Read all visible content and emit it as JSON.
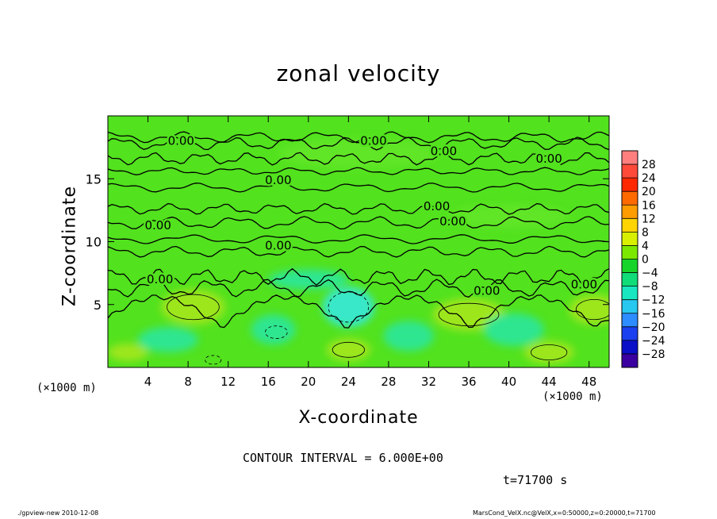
{
  "chart_data": {
    "type": "heatmap",
    "title": "zonal velocity",
    "xlabel": "X-coordinate",
    "ylabel": "Z-coordinate",
    "x_unit_left": "(×1000 m)",
    "x_unit_right": "(×1000 m)",
    "xlim": [
      0,
      50
    ],
    "ylim": [
      0,
      20
    ],
    "x_ticks": [
      "4",
      "8",
      "12",
      "16",
      "20",
      "24",
      "28",
      "32",
      "36",
      "40",
      "44",
      "48"
    ],
    "x_tick_values": [
      4,
      8,
      12,
      16,
      20,
      24,
      28,
      32,
      36,
      40,
      44,
      48
    ],
    "y_ticks": [
      "5",
      "10",
      "15"
    ],
    "y_tick_values": [
      5,
      10,
      15
    ],
    "contour_interval_text": "CONTOUR INTERVAL = 6.000E+00",
    "time_text": "t=71700 s",
    "contour_labels": [
      {
        "text": "0.00",
        "x": 7.3,
        "z": 18.0
      },
      {
        "text": "0.00",
        "x": 26.5,
        "z": 18.0
      },
      {
        "text": "0.00",
        "x": 33.5,
        "z": 17.2
      },
      {
        "text": "0.00",
        "x": 44.0,
        "z": 16.6
      },
      {
        "text": "0.00",
        "x": 17.0,
        "z": 14.9
      },
      {
        "text": "0.00",
        "x": 32.8,
        "z": 12.8
      },
      {
        "text": "0.00",
        "x": 34.4,
        "z": 11.6
      },
      {
        "text": "0.00",
        "x": 5.0,
        "z": 11.3
      },
      {
        "text": "0.00",
        "x": 17.0,
        "z": 9.7
      },
      {
        "text": "0.00",
        "x": 5.2,
        "z": 7.0
      },
      {
        "text": "0.00",
        "x": 37.8,
        "z": 6.1
      },
      {
        "text": "0.00",
        "x": 47.5,
        "z": 6.6
      }
    ],
    "colorbar": {
      "levels": [
        "28",
        "24",
        "20",
        "16",
        "12",
        "8",
        "4",
        "0",
        "−4",
        "−8",
        "−12",
        "−16",
        "−20",
        "−24",
        "−28"
      ],
      "colors": [
        "#ff7f7f",
        "#ff4a3a",
        "#ff2800",
        "#ff6a00",
        "#ff9c00",
        "#ffd400",
        "#d8f000",
        "#7ce800",
        "#17d42a",
        "#10dc78",
        "#18e6c0",
        "#28c8f0",
        "#2d8cff",
        "#1a40f0",
        "#0a10c8",
        "#3a00a0"
      ]
    },
    "field_colors": {
      "base": "#52e21e",
      "positive": "#9ee61e",
      "negative": "#2ee690",
      "strong_negative": "#38e8c8"
    }
  },
  "footer": {
    "left": "./gpview-new   2010-12-08",
    "right": "MarsCond_VelX.nc@VelX,x=0:50000,z=0:20000,t=71700"
  }
}
